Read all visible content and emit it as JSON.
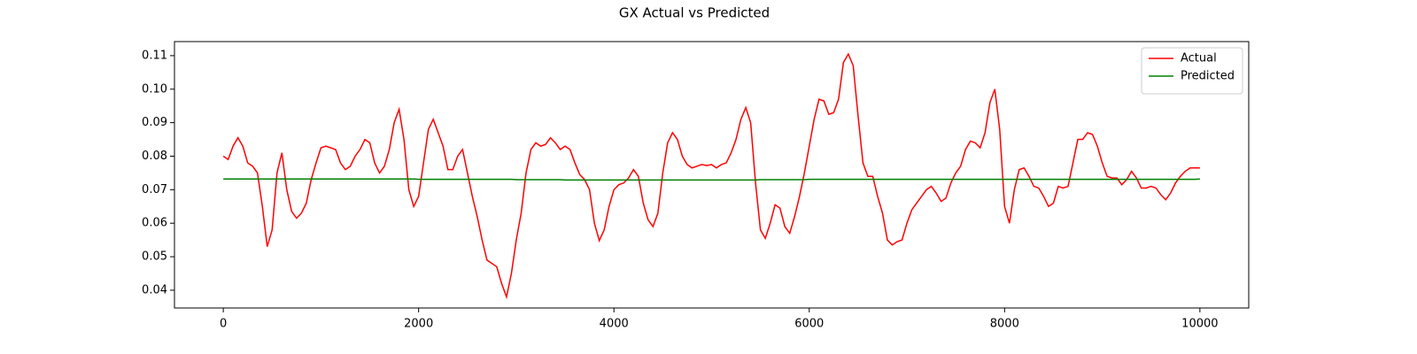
{
  "chart_data": {
    "type": "line",
    "title": "GX Actual vs Predicted",
    "x": [
      0,
      50,
      100,
      150,
      200,
      250,
      300,
      350,
      400,
      450,
      500,
      550,
      600,
      650,
      700,
      750,
      800,
      850,
      900,
      950,
      1000,
      1050,
      1100,
      1150,
      1200,
      1250,
      1300,
      1350,
      1400,
      1450,
      1500,
      1550,
      1600,
      1650,
      1700,
      1750,
      1800,
      1850,
      1900,
      1950,
      2000,
      2050,
      2100,
      2150,
      2200,
      2250,
      2300,
      2350,
      2400,
      2450,
      2500,
      2550,
      2600,
      2650,
      2700,
      2750,
      2800,
      2850,
      2900,
      2950,
      3000,
      3050,
      3100,
      3150,
      3200,
      3250,
      3300,
      3350,
      3400,
      3450,
      3500,
      3550,
      3600,
      3650,
      3700,
      3750,
      3800,
      3850,
      3900,
      3950,
      4000,
      4050,
      4100,
      4150,
      4200,
      4250,
      4300,
      4350,
      4400,
      4450,
      4500,
      4550,
      4600,
      4650,
      4700,
      4750,
      4800,
      4850,
      4900,
      4950,
      5000,
      5050,
      5100,
      5150,
      5200,
      5250,
      5300,
      5350,
      5400,
      5450,
      5500,
      5550,
      5600,
      5650,
      5700,
      5750,
      5800,
      5850,
      5900,
      5950,
      6000,
      6050,
      6100,
      6150,
      6200,
      6250,
      6300,
      6350,
      6400,
      6450,
      6500,
      6550,
      6600,
      6650,
      6700,
      6750,
      6800,
      6850,
      6900,
      6950,
      7000,
      7050,
      7100,
      7150,
      7200,
      7250,
      7300,
      7350,
      7400,
      7450,
      7500,
      7550,
      7600,
      7650,
      7700,
      7750,
      7800,
      7850,
      7900,
      7950,
      8000,
      8050,
      8100,
      8150,
      8200,
      8250,
      8300,
      8350,
      8400,
      8450,
      8500,
      8550,
      8600,
      8650,
      8700,
      8750,
      8800,
      8850,
      8900,
      8950,
      9000,
      9050,
      9100,
      9150,
      9200,
      9250,
      9300,
      9350,
      9400,
      9450,
      9500,
      9550,
      9600,
      9650,
      9700,
      9750,
      9800,
      9850,
      9900,
      9950,
      10000
    ],
    "series": [
      {
        "name": "Actual",
        "color": "#ff0000",
        "values": [
          0.08,
          0.079,
          0.083,
          0.0855,
          0.083,
          0.078,
          0.077,
          0.075,
          0.065,
          0.053,
          0.058,
          0.075,
          0.081,
          0.07,
          0.0635,
          0.0615,
          0.063,
          0.066,
          0.073,
          0.078,
          0.0825,
          0.083,
          0.0825,
          0.082,
          0.078,
          0.076,
          0.077,
          0.08,
          0.082,
          0.085,
          0.084,
          0.078,
          0.075,
          0.077,
          0.082,
          0.09,
          0.094,
          0.085,
          0.07,
          0.065,
          0.068,
          0.078,
          0.088,
          0.091,
          0.087,
          0.083,
          0.076,
          0.076,
          0.08,
          0.082,
          0.075,
          0.068,
          0.062,
          0.055,
          0.049,
          0.048,
          0.047,
          0.042,
          0.038,
          0.045,
          0.055,
          0.063,
          0.075,
          0.082,
          0.084,
          0.083,
          0.0835,
          0.0855,
          0.084,
          0.082,
          0.083,
          0.082,
          0.078,
          0.0745,
          0.073,
          0.07,
          0.06,
          0.0548,
          0.058,
          0.065,
          0.07,
          0.0715,
          0.072,
          0.0735,
          0.076,
          0.074,
          0.066,
          0.061,
          0.059,
          0.063,
          0.075,
          0.084,
          0.087,
          0.085,
          0.08,
          0.0775,
          0.0765,
          0.077,
          0.0775,
          0.0772,
          0.0775,
          0.0765,
          0.0775,
          0.078,
          0.081,
          0.085,
          0.091,
          0.0945,
          0.09,
          0.072,
          0.058,
          0.0555,
          0.06,
          0.0655,
          0.0645,
          0.059,
          0.057,
          0.062,
          0.068,
          0.075,
          0.083,
          0.091,
          0.097,
          0.0965,
          0.0925,
          0.093,
          0.097,
          0.108,
          0.1105,
          0.107,
          0.092,
          0.078,
          0.074,
          0.074,
          0.068,
          0.063,
          0.055,
          0.0535,
          0.0545,
          0.055,
          0.06,
          0.064,
          0.066,
          0.068,
          0.07,
          0.071,
          0.069,
          0.0665,
          0.0675,
          0.072,
          0.075,
          0.077,
          0.082,
          0.0845,
          0.084,
          0.0825,
          0.087,
          0.096,
          0.1,
          0.088,
          0.065,
          0.06,
          0.07,
          0.076,
          0.0765,
          0.074,
          0.071,
          0.0705,
          0.068,
          0.065,
          0.066,
          0.071,
          0.0705,
          0.071,
          0.078,
          0.085,
          0.085,
          0.087,
          0.0865,
          0.083,
          0.078,
          0.074,
          0.0735,
          0.0735,
          0.0715,
          0.073,
          0.0755,
          0.0735,
          0.0705,
          0.0705,
          0.071,
          0.0705,
          0.0685,
          0.067,
          0.069,
          0.072,
          0.074,
          0.0755,
          0.0765,
          0.0765,
          0.0765
        ]
      },
      {
        "name": "Predicted",
        "color": "#008000",
        "values": [
          0.0732,
          0.0732,
          0.0732,
          0.0732,
          0.0732,
          0.0732,
          0.0732,
          0.0732,
          0.0732,
          0.0732,
          0.0732,
          0.0732,
          0.0732,
          0.0732,
          0.0732,
          0.0732,
          0.0732,
          0.0732,
          0.0732,
          0.0732,
          0.0732,
          0.0732,
          0.0732,
          0.0732,
          0.0732,
          0.0732,
          0.0732,
          0.0732,
          0.0732,
          0.0732,
          0.0732,
          0.0732,
          0.0732,
          0.0732,
          0.0732,
          0.0732,
          0.0732,
          0.0732,
          0.0732,
          0.0732,
          0.0731,
          0.0731,
          0.0731,
          0.0731,
          0.0731,
          0.0731,
          0.0731,
          0.0731,
          0.0731,
          0.0731,
          0.0731,
          0.0731,
          0.0731,
          0.0731,
          0.0731,
          0.0731,
          0.0731,
          0.0731,
          0.0731,
          0.0731,
          0.073,
          0.073,
          0.073,
          0.073,
          0.073,
          0.073,
          0.073,
          0.073,
          0.073,
          0.073,
          0.0729,
          0.0729,
          0.0729,
          0.0729,
          0.0729,
          0.0729,
          0.0729,
          0.0729,
          0.0729,
          0.0729,
          0.0729,
          0.0729,
          0.0729,
          0.0729,
          0.0729,
          0.0729,
          0.0729,
          0.0729,
          0.0729,
          0.0729,
          0.0729,
          0.0729,
          0.0729,
          0.0729,
          0.0729,
          0.0729,
          0.0729,
          0.0729,
          0.0729,
          0.0729,
          0.0729,
          0.0729,
          0.0729,
          0.0729,
          0.0729,
          0.0729,
          0.0729,
          0.0729,
          0.0729,
          0.0729,
          0.073,
          0.073,
          0.073,
          0.073,
          0.073,
          0.073,
          0.073,
          0.073,
          0.073,
          0.073,
          0.0731,
          0.0731,
          0.0731,
          0.0731,
          0.0731,
          0.0731,
          0.0731,
          0.0731,
          0.0731,
          0.0731,
          0.0731,
          0.0731,
          0.0731,
          0.0731,
          0.0731,
          0.0731,
          0.0731,
          0.0731,
          0.0731,
          0.0731,
          0.0731,
          0.0731,
          0.0731,
          0.0731,
          0.0731,
          0.0731,
          0.0731,
          0.0731,
          0.0731,
          0.0731,
          0.0731,
          0.0731,
          0.0731,
          0.0731,
          0.0731,
          0.0731,
          0.0731,
          0.0731,
          0.0731,
          0.0731,
          0.0731,
          0.0731,
          0.0731,
          0.0731,
          0.0731,
          0.0731,
          0.0731,
          0.0731,
          0.0731,
          0.0731,
          0.0731,
          0.0731,
          0.0731,
          0.0731,
          0.0731,
          0.0731,
          0.0731,
          0.0731,
          0.0731,
          0.0731,
          0.0731,
          0.0731,
          0.0731,
          0.0731,
          0.0731,
          0.0731,
          0.0731,
          0.0731,
          0.0731,
          0.0731,
          0.0731,
          0.0731,
          0.0731,
          0.0731,
          0.0731,
          0.0731,
          0.0731,
          0.0731,
          0.0731,
          0.0731,
          0.0732
        ]
      }
    ],
    "xlim": [
      -500,
      10500
    ],
    "xticks": [
      0,
      2000,
      4000,
      6000,
      8000,
      10000
    ],
    "ylim": [
      0.0347,
      0.1142
    ],
    "yticks": [
      0.04,
      0.05,
      0.06,
      0.07,
      0.08,
      0.09,
      {
        "value": 0.1,
        "label": "0.10"
      },
      0.11
    ],
    "legend": "upper right"
  }
}
